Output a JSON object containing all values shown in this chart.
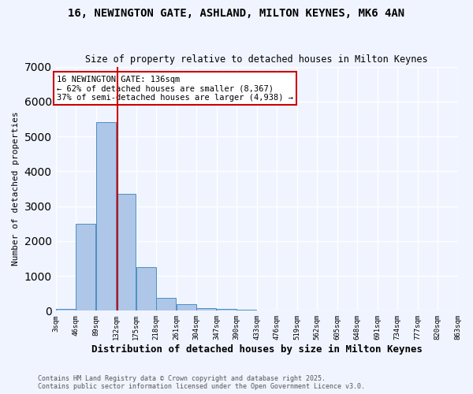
{
  "title_line1": "16, NEWINGTON GATE, ASHLAND, MILTON KEYNES, MK6 4AN",
  "title_line2": "Size of property relative to detached houses in Milton Keynes",
  "xlabel": "Distribution of detached houses by size in Milton Keynes",
  "ylabel": "Number of detached properties",
  "bar_color": "#aec6e8",
  "bar_edge_color": "#4a90c4",
  "bins": [
    "3sqm",
    "46sqm",
    "89sqm",
    "132sqm",
    "175sqm",
    "218sqm",
    "261sqm",
    "304sqm",
    "347sqm",
    "390sqm",
    "433sqm",
    "476sqm",
    "519sqm",
    "562sqm",
    "605sqm",
    "648sqm",
    "691sqm",
    "734sqm",
    "777sqm",
    "820sqm",
    "863sqm"
  ],
  "bin_edges": [
    3,
    46,
    89,
    132,
    175,
    218,
    261,
    304,
    347,
    390,
    433,
    476,
    519,
    562,
    605,
    648,
    691,
    734,
    777,
    820,
    863
  ],
  "counts": [
    50,
    2500,
    5400,
    3350,
    1250,
    370,
    180,
    80,
    60,
    30,
    0,
    0,
    0,
    0,
    0,
    0,
    0,
    0,
    0,
    0
  ],
  "property_size": 136,
  "vline_color": "#cc0000",
  "annotation_title": "16 NEWINGTON GATE: 136sqm",
  "annotation_line1": "← 62% of detached houses are smaller (8,367)",
  "annotation_line2": "37% of semi-detached houses are larger (4,938) →",
  "annotation_box_color": "#ffffff",
  "annotation_border_color": "#cc0000",
  "ylim": [
    0,
    7000
  ],
  "yticks": [
    0,
    1000,
    2000,
    3000,
    4000,
    5000,
    6000,
    7000
  ],
  "footer_line1": "Contains HM Land Registry data © Crown copyright and database right 2025.",
  "footer_line2": "Contains public sector information licensed under the Open Government Licence v3.0.",
  "bg_color": "#f0f4ff",
  "grid_color": "#ffffff"
}
